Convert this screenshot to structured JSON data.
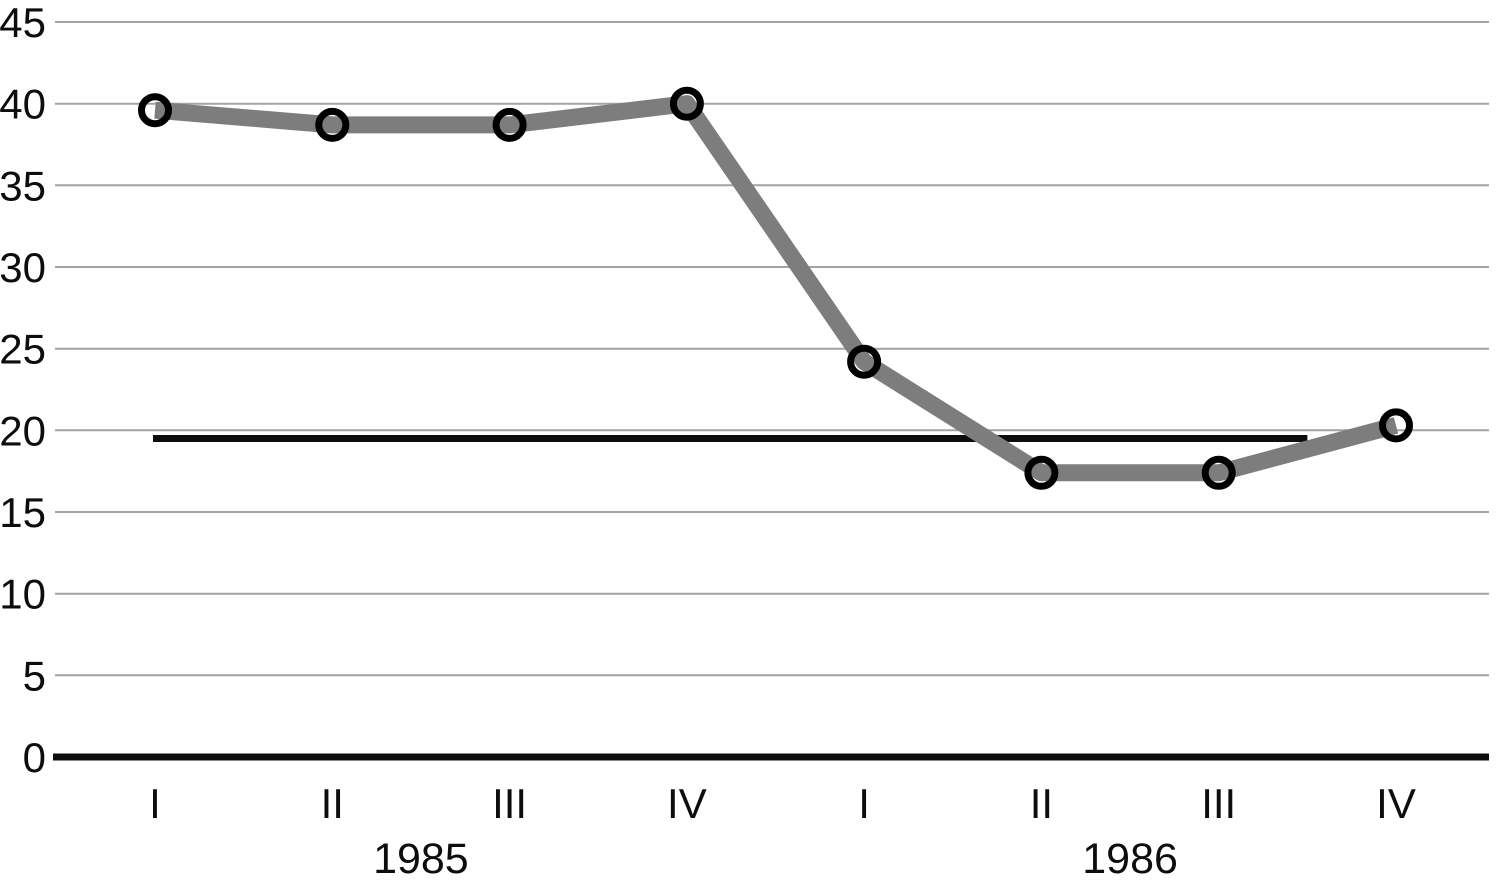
{
  "chart_data": {
    "type": "line",
    "categories": [
      "I",
      "II",
      "III",
      "IV",
      "I",
      "II",
      "III",
      "IV"
    ],
    "year_labels": [
      {
        "label": "1985",
        "span": [
          0,
          3
        ]
      },
      {
        "label": "1986",
        "span": [
          4,
          7
        ]
      }
    ],
    "series": [
      {
        "name": "quarterly-values",
        "values": [
          39.6,
          38.7,
          38.7,
          40.0,
          24.2,
          17.4,
          17.4,
          20.3
        ]
      }
    ],
    "reference_line": {
      "value": 19.5,
      "from_index": 0,
      "to_index": 6.5
    },
    "title": "",
    "xlabel": "",
    "ylabel": "",
    "ylim": [
      0,
      45
    ],
    "yticks": [
      0,
      5,
      10,
      15,
      20,
      25,
      30,
      35,
      40,
      45
    ],
    "ytick_labels": [
      "0",
      "5",
      "10",
      "15",
      "20",
      "25",
      "30",
      "35",
      "40",
      "45"
    ],
    "grid": "horizontal",
    "legend": "none",
    "colors": {
      "line": "#7d7d7d",
      "marker_stroke": "#000000",
      "marker_fill": "none",
      "gridline": "#a3a3a3",
      "axis": "#0d0d0d",
      "reference_line": "#0d0d0d",
      "background": "#ffffff",
      "text": "#0d0d0d"
    }
  }
}
